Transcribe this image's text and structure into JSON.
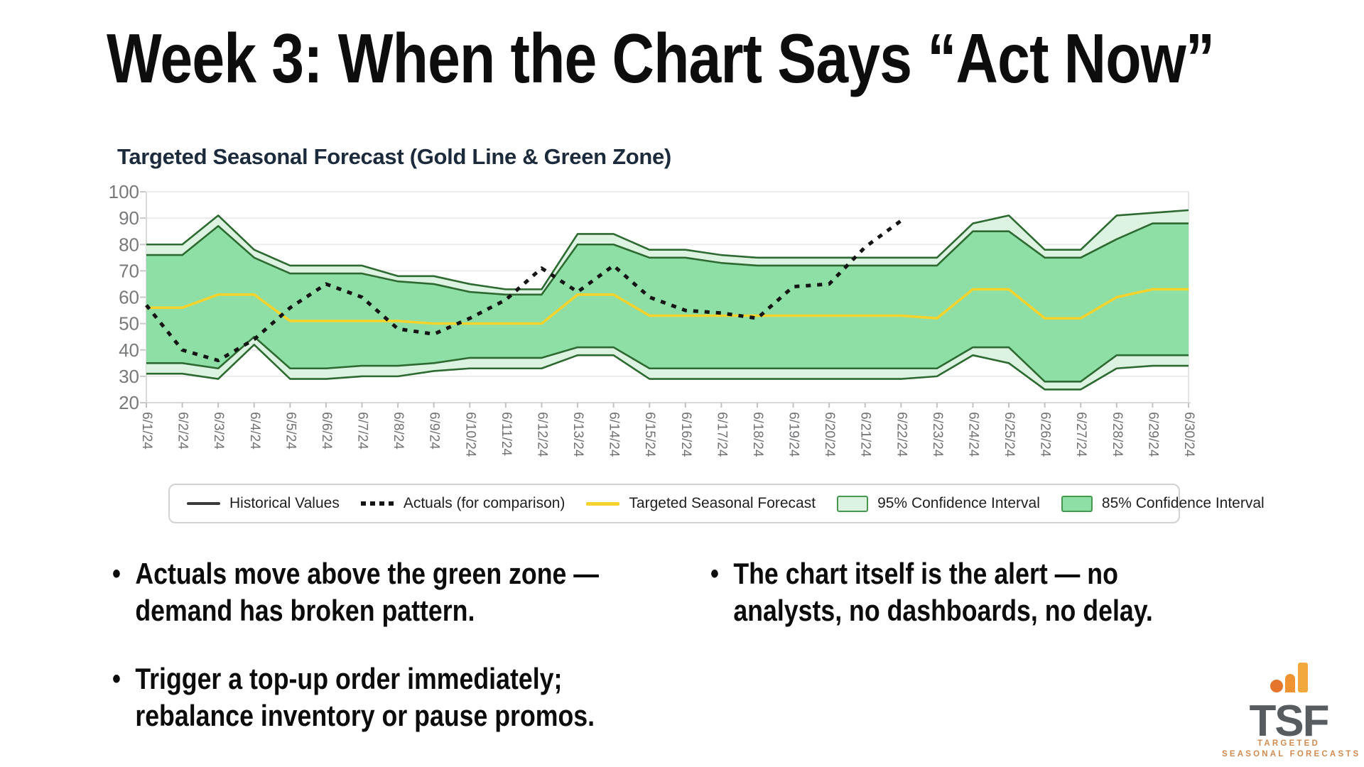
{
  "slide": {
    "title": "Week 3: When the Chart Says “Act Now”"
  },
  "chart_data": {
    "type": "line",
    "title": "Targeted Seasonal Forecast (Gold Line & Green Zone)",
    "xlabel": "",
    "ylabel": "",
    "ylim": [
      20,
      100
    ],
    "yticks": [
      20,
      30,
      40,
      50,
      60,
      70,
      80,
      90,
      100
    ],
    "grid": true,
    "legend_position": "bottom",
    "x_labels": [
      "6/1/24",
      "6/2/24",
      "6/3/24",
      "6/4/24",
      "6/5/24",
      "6/6/24",
      "6/7/24",
      "6/8/24",
      "6/9/24",
      "6/10/24",
      "6/11/24",
      "6/12/24",
      "6/13/24",
      "6/14/24",
      "6/15/24",
      "6/16/24",
      "6/17/24",
      "6/18/24",
      "6/19/24",
      "6/20/24",
      "6/21/24",
      "6/22/24",
      "6/23/24",
      "6/24/24",
      "6/25/24",
      "6/26/24",
      "6/27/24",
      "6/28/24",
      "6/29/24",
      "6/30/24"
    ],
    "series": [
      {
        "name": "95% Confidence Interval",
        "type": "band",
        "fill": "#ddf3e1",
        "stroke": "#2d6a31",
        "upper": [
          80,
          80,
          91,
          78,
          72,
          72,
          72,
          68,
          68,
          65,
          63,
          63,
          84,
          84,
          78,
          78,
          76,
          75,
          75,
          75,
          75,
          75,
          75,
          88,
          91,
          78,
          78,
          91,
          92,
          93
        ],
        "lower": [
          31,
          31,
          29,
          42,
          29,
          29,
          30,
          30,
          32,
          33,
          33,
          33,
          38,
          38,
          29,
          29,
          29,
          29,
          29,
          29,
          29,
          29,
          30,
          38,
          35,
          25,
          25,
          33,
          34,
          34
        ]
      },
      {
        "name": "85% Confidence Interval",
        "type": "band",
        "fill": "#8edfa6",
        "stroke": "#2d6a31",
        "upper": [
          76,
          76,
          87,
          75,
          69,
          69,
          69,
          66,
          65,
          62,
          61,
          61,
          80,
          80,
          75,
          75,
          73,
          72,
          72,
          72,
          72,
          72,
          72,
          85,
          85,
          75,
          75,
          82,
          88,
          88
        ],
        "lower": [
          35,
          35,
          33,
          45,
          33,
          33,
          34,
          34,
          35,
          37,
          37,
          37,
          41,
          41,
          33,
          33,
          33,
          33,
          33,
          33,
          33,
          33,
          33,
          41,
          41,
          28,
          28,
          38,
          38,
          38
        ]
      },
      {
        "name": "Targeted Seasonal Forecast",
        "type": "line",
        "style": "solid",
        "color": "#f5d22c",
        "values": [
          56,
          56,
          61,
          61,
          51,
          51,
          51,
          51,
          50,
          50,
          50,
          50,
          61,
          61,
          53,
          53,
          53,
          53,
          53,
          53,
          53,
          53,
          52,
          63,
          63,
          52,
          52,
          60,
          63,
          63
        ]
      },
      {
        "name": "Actuals (for comparison)",
        "type": "line",
        "style": "dotted",
        "color": "#141414",
        "values": [
          57,
          40,
          36,
          44,
          56,
          65,
          60,
          48,
          46,
          52,
          59,
          71,
          62,
          72,
          60,
          55,
          54,
          52,
          64,
          65,
          79,
          89,
          null,
          null,
          null,
          null,
          null,
          null,
          null,
          null
        ]
      },
      {
        "name": "Historical Values",
        "type": "line",
        "style": "solid",
        "color": "#3a3a3a",
        "values": []
      }
    ]
  },
  "legend": {
    "items": [
      {
        "label": "Historical Values",
        "swatch": "solid-line"
      },
      {
        "label": "Actuals (for comparison)",
        "swatch": "dotted-line"
      },
      {
        "label": "Targeted Seasonal Forecast",
        "swatch": "gold-line"
      },
      {
        "label": "95% Confidence Interval",
        "swatch": "light-green-box"
      },
      {
        "label": "85% Confidence Interval",
        "swatch": "green-box"
      }
    ]
  },
  "bullets": {
    "marker": "•",
    "left": [
      {
        "lines": [
          "Actuals move above the green zone —",
          "demand has broken pattern."
        ]
      },
      {
        "lines": [
          "Trigger a top-up order immediately;",
          "rebalance inventory or pause promos."
        ]
      }
    ],
    "right": [
      {
        "lines": [
          "The chart itself is the alert — no",
          "analysts, no dashboards, no delay."
        ]
      }
    ]
  },
  "logo": {
    "acronym": "TSF",
    "tagline_line1": "TARGETED",
    "tagline_line2": "SEASONAL FORECASTS",
    "colors": {
      "gray": "#575c60",
      "dot": "#e5752c",
      "bar_mid": "#ef9232",
      "bar_tall": "#f2a83c",
      "tagline": "#cf8c52"
    }
  }
}
